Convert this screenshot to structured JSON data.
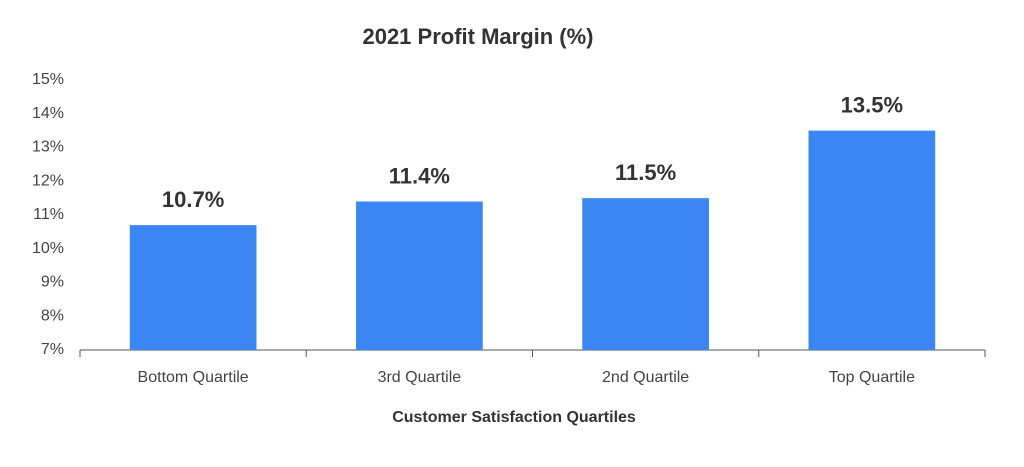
{
  "chart_data": {
    "type": "bar",
    "title": "2021 Profit Margin (%)",
    "x_label": "Customer Satisfaction Quartiles",
    "categories": [
      "Bottom Quartile",
      "3rd Quartile",
      "2nd Quartile",
      "Top Quartile"
    ],
    "values": [
      10.7,
      11.4,
      11.5,
      13.5
    ],
    "value_labels": [
      "10.7%",
      "11.4%",
      "11.5%",
      "13.5%"
    ],
    "color": "#3b86f2",
    "ylim": [
      7,
      15
    ],
    "yticks": [
      {
        "value": 7,
        "label": "7%"
      },
      {
        "value": 8,
        "label": "8%"
      },
      {
        "value": 9,
        "label": "9%"
      },
      {
        "value": 10,
        "label": "10%"
      },
      {
        "value": 11,
        "label": "11%"
      },
      {
        "value": 12,
        "label": "12%"
      },
      {
        "value": 13,
        "label": "13%"
      },
      {
        "value": 14,
        "label": "14%"
      },
      {
        "value": 15,
        "label": "15%"
      }
    ],
    "grid": false
  }
}
